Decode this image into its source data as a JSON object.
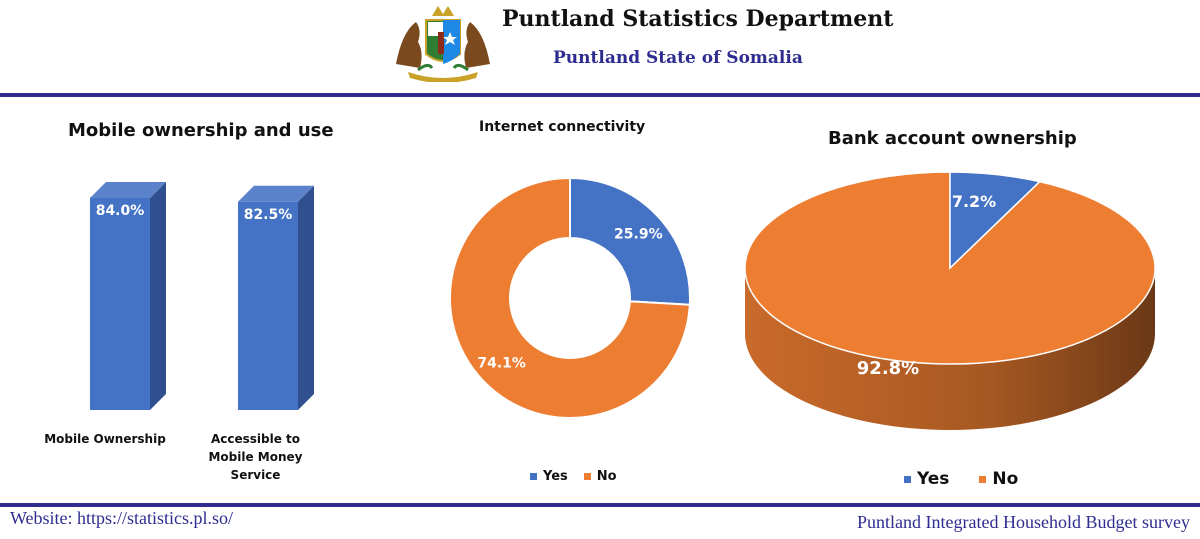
{
  "header": {
    "title": "Puntland Statistics Department",
    "subtitle": "Puntland State of Somalia"
  },
  "footer": {
    "website": "Website: https://statistics.pl.so/",
    "survey": "Puntland Integrated Household Budget survey"
  },
  "colors": {
    "blue": "#4472c4",
    "orange": "#ed7d31",
    "rule": "#2e2c8f"
  },
  "chart_data": [
    {
      "type": "bar",
      "title": "Mobile ownership and use",
      "categories": [
        "Mobile Ownership",
        "Accessible to Mobile Money Service"
      ],
      "values": [
        84.0,
        82.5
      ],
      "value_labels": [
        "84.0%",
        "82.5%"
      ],
      "style": "3d-column"
    },
    {
      "type": "pie",
      "style": "donut",
      "title": "Internet connectivity",
      "labels": [
        "Yes",
        "No"
      ],
      "values": [
        25.9,
        74.1
      ],
      "value_labels": [
        "25.9%",
        "74.1%"
      ],
      "legend": "bottom"
    },
    {
      "type": "pie",
      "style": "3d",
      "title": "Bank account ownership",
      "labels": [
        "Yes",
        "No"
      ],
      "values": [
        7.2,
        92.8
      ],
      "value_labels": [
        "7.2%",
        "92.8%"
      ],
      "legend": "bottom"
    }
  ]
}
